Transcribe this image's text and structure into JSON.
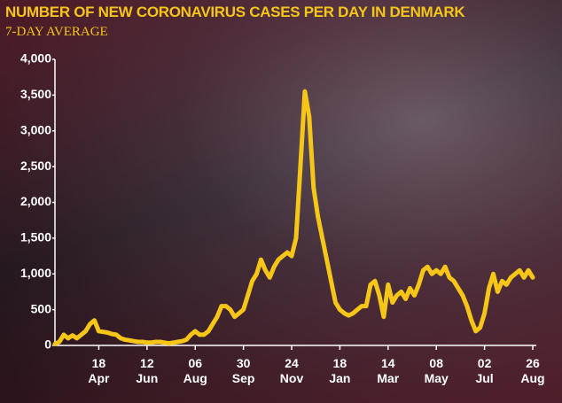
{
  "chart_data": {
    "type": "line",
    "title": "NUMBER OF NEW CORONAVIRUS CASES PER DAY IN DENMARK",
    "subtitle": "7-DAY AVERAGE",
    "categories": [
      null,
      null,
      null,
      null,
      null,
      null,
      null,
      null,
      null,
      null,
      "18 Apr",
      null,
      null,
      null,
      null,
      null,
      null,
      null,
      null,
      null,
      null,
      "12 Jun",
      null,
      null,
      null,
      null,
      null,
      null,
      null,
      null,
      null,
      null,
      "06 Aug",
      null,
      null,
      null,
      null,
      null,
      null,
      null,
      null,
      null,
      null,
      "30 Sep",
      null,
      null,
      null,
      null,
      null,
      null,
      null,
      null,
      null,
      null,
      "24 Nov",
      null,
      null,
      null,
      null,
      null,
      null,
      null,
      null,
      null,
      null,
      "18 Jan",
      null,
      null,
      null,
      null,
      null,
      null,
      null,
      null,
      null,
      null,
      "14 Mar",
      null,
      null,
      null,
      null,
      null,
      null,
      null,
      null,
      null,
      null,
      "08 May",
      null,
      null,
      null,
      null,
      null,
      null,
      null,
      null,
      null,
      null,
      "02 Jul",
      null,
      null,
      null,
      null,
      null,
      null,
      null,
      null,
      null,
      null,
      "26 Aug"
    ],
    "values": [
      20,
      50,
      150,
      100,
      140,
      100,
      150,
      200,
      300,
      350,
      200,
      190,
      180,
      160,
      150,
      100,
      80,
      70,
      60,
      50,
      50,
      40,
      40,
      50,
      50,
      40,
      30,
      40,
      50,
      60,
      80,
      150,
      200,
      150,
      150,
      200,
      300,
      400,
      550,
      550,
      500,
      400,
      450,
      500,
      700,
      900,
      1000,
      1200,
      1050,
      950,
      1100,
      1200,
      1250,
      1300,
      1250,
      1500,
      2500,
      3550,
      3200,
      2200,
      1800,
      1500,
      1200,
      900,
      600,
      500,
      450,
      420,
      450,
      500,
      550,
      550,
      850,
      900,
      700,
      400,
      850,
      600,
      700,
      750,
      650,
      800,
      700,
      850,
      1050,
      1100,
      1000,
      1050,
      1000,
      1100,
      950,
      900,
      800,
      700,
      550,
      350,
      200,
      250,
      450,
      800,
      1000,
      750,
      900,
      850,
      950,
      1000,
      1050,
      950,
      1050,
      950
    ],
    "color": "#f5c518",
    "ylim": [
      0,
      4000
    ],
    "yticks": [
      0,
      500,
      {
        "value": 1000,
        "label": "1,000"
      },
      {
        "value": 1500,
        "label": "1,500"
      },
      {
        "value": 2000,
        "label": "2,000"
      },
      {
        "value": 2500,
        "label": "2,500"
      },
      {
        "value": 3000,
        "label": "3,000"
      },
      {
        "value": 3500,
        "label": "3,500"
      },
      {
        "value": 4000,
        "label": "4,000"
      }
    ]
  }
}
